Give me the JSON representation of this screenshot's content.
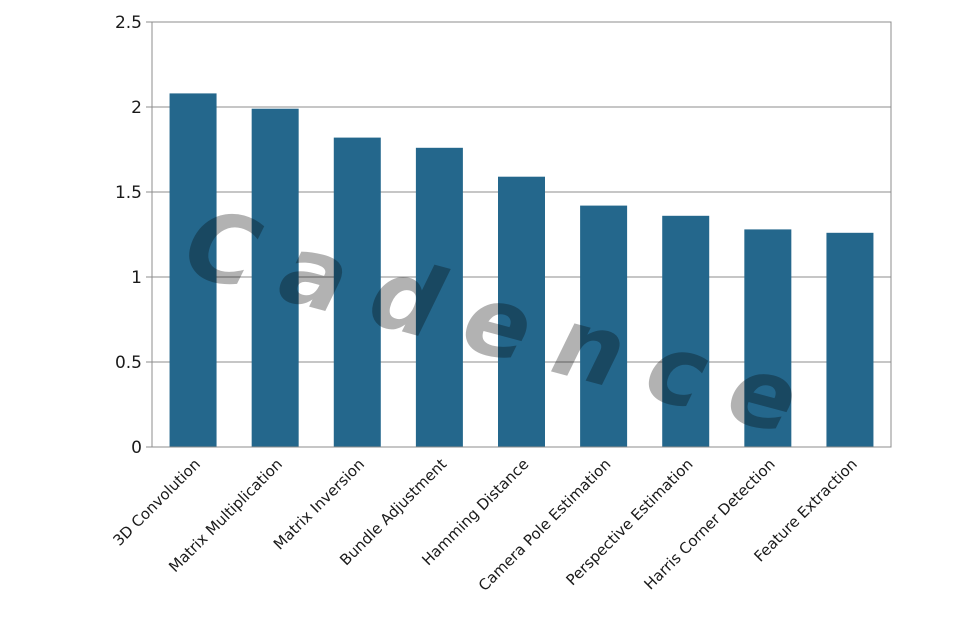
{
  "chart_data": {
    "type": "bar",
    "categories": [
      "3D Convolution",
      "Matrix Multiplication",
      "Matrix Inversion",
      "Bundle Adjustment",
      "Hamming Distance",
      "Camera Pole Estimation",
      "Perspective Estimation",
      "Harris Corner Detection",
      "Feature Extraction"
    ],
    "values": [
      2.08,
      1.99,
      1.82,
      1.76,
      1.59,
      1.42,
      1.36,
      1.28,
      1.26
    ],
    "yticks": [
      "0",
      "0.5",
      "1",
      "1.5",
      "2",
      "2.5"
    ],
    "ylim": [
      0,
      2.5
    ],
    "grid": true,
    "legend": "none",
    "bar_color": "#24678c",
    "watermark": "Cadence"
  }
}
